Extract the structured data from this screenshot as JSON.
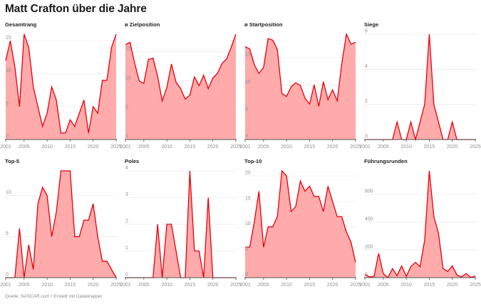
{
  "header": {
    "title": "Matt Crafton über die Jahre"
  },
  "footer": {
    "source": "Quelle: NASCAR.com • Erstellt mit Datawrapper"
  },
  "colors": {
    "line": "#e8000b",
    "fill": "#ffaaab",
    "grid": "#ececec",
    "axis": "#555555",
    "tick_text": "#8f8f8f"
  },
  "chart_data": [
    {
      "type": "area",
      "title": "Gesamtrang",
      "xlabel": "",
      "ylabel": "",
      "x": [
        2001,
        2002,
        2003,
        2004,
        2005,
        2006,
        2007,
        2008,
        2009,
        2010,
        2011,
        2012,
        2013,
        2014,
        2015,
        2016,
        2017,
        2018,
        2019,
        2020,
        2021,
        2022,
        2023,
        2024,
        2025
      ],
      "values": [
        12,
        15,
        11,
        5,
        16,
        14,
        8,
        5,
        2,
        4,
        8,
        6,
        1,
        1,
        3,
        2,
        4,
        6,
        1,
        5,
        4,
        9,
        9,
        14,
        16
      ],
      "ylim": [
        0,
        16
      ],
      "yticks": [
        0,
        5,
        10,
        15
      ],
      "xticks": [
        2001,
        2005,
        2010,
        2015,
        2020,
        2025
      ],
      "grid": true
    },
    {
      "type": "area",
      "title": "ø Zielposition",
      "xlabel": "",
      "ylabel": "",
      "x": [
        2001,
        2002,
        2003,
        2004,
        2005,
        2006,
        2007,
        2008,
        2009,
        2010,
        2011,
        2012,
        2013,
        2014,
        2015,
        2016,
        2017,
        2018,
        2019,
        2020,
        2021,
        2022,
        2023,
        2024,
        2025
      ],
      "values": [
        16.2,
        16.6,
        13.1,
        10.0,
        9.6,
        13.7,
        13.9,
        10.8,
        6.6,
        8.9,
        12.9,
        9.8,
        8.7,
        6.9,
        7.6,
        10.7,
        9.2,
        11.0,
        8.7,
        10.5,
        11.3,
        13.0,
        13.8,
        15.8,
        18.0
      ],
      "ylim": [
        0,
        18
      ],
      "yticks": [
        0,
        5,
        10,
        15
      ],
      "xticks": [
        2001,
        2005,
        2010,
        2015,
        2020,
        2025
      ],
      "grid": true
    },
    {
      "type": "area",
      "title": "ø Startposition",
      "xlabel": "",
      "ylabel": "",
      "x": [
        2001,
        2002,
        2003,
        2004,
        2005,
        2006,
        2007,
        2008,
        2009,
        2010,
        2011,
        2012,
        2013,
        2014,
        2015,
        2016,
        2017,
        2018,
        2019,
        2020,
        2021,
        2022,
        2023,
        2024,
        2025
      ],
      "values": [
        17.0,
        16.6,
        13.7,
        12.1,
        13.2,
        18.5,
        18.2,
        16.5,
        8.4,
        7.9,
        9.7,
        10.4,
        9.9,
        7.6,
        6.5,
        10.0,
        6.1,
        10.6,
        7.3,
        9.1,
        7.1,
        13.9,
        19.3,
        17.5,
        17.8
      ],
      "ylim": [
        0,
        19.3
      ],
      "yticks": [
        0,
        5,
        10,
        15
      ],
      "xticks": [
        2001,
        2005,
        2010,
        2015,
        2020,
        2025
      ],
      "grid": true
    },
    {
      "type": "area",
      "title": "Siege",
      "xlabel": "",
      "ylabel": "",
      "x": [
        2001,
        2002,
        2003,
        2004,
        2005,
        2006,
        2007,
        2008,
        2009,
        2010,
        2011,
        2012,
        2013,
        2014,
        2015,
        2016,
        2017,
        2018,
        2019,
        2020,
        2021,
        2022,
        2023,
        2024,
        2025
      ],
      "values": [
        0,
        0,
        0,
        0,
        0,
        0,
        0,
        1,
        0,
        0,
        1,
        0,
        1,
        2,
        6,
        2,
        1,
        0,
        0,
        1,
        0,
        0,
        0,
        0,
        0
      ],
      "ylim": [
        0,
        6
      ],
      "yticks": [
        0,
        2,
        4,
        6
      ],
      "xticks": [
        2001,
        2005,
        2010,
        2015,
        2020,
        2025
      ],
      "grid": true
    },
    {
      "type": "area",
      "title": "Top-5",
      "xlabel": "",
      "ylabel": "",
      "x": [
        2001,
        2002,
        2003,
        2004,
        2005,
        2006,
        2007,
        2008,
        2009,
        2010,
        2011,
        2012,
        2013,
        2014,
        2015,
        2016,
        2017,
        2018,
        2019,
        2020,
        2021,
        2022,
        2023,
        2024,
        2025
      ],
      "values": [
        0,
        0,
        0,
        6,
        0,
        4,
        1,
        9,
        11,
        10,
        5,
        8,
        13,
        13,
        13,
        5,
        5,
        7,
        7,
        9,
        5,
        2,
        2,
        1,
        0
      ],
      "ylim": [
        0,
        13
      ],
      "yticks": [
        0,
        5,
        10
      ],
      "xticks": [
        2001,
        2005,
        2010,
        2015,
        2020,
        2025
      ],
      "grid": true
    },
    {
      "type": "area",
      "title": "Poles",
      "xlabel": "",
      "ylabel": "",
      "x": [
        2001,
        2002,
        2003,
        2004,
        2005,
        2006,
        2007,
        2008,
        2009,
        2010,
        2011,
        2012,
        2013,
        2014,
        2015,
        2016,
        2017,
        2018,
        2019,
        2020,
        2021,
        2022,
        2023,
        2024,
        2025
      ],
      "values": [
        0,
        0,
        0,
        0,
        0,
        0,
        0,
        2,
        0,
        2,
        2,
        1,
        0,
        0,
        4,
        1,
        1,
        0,
        3,
        0,
        0,
        0,
        0,
        0,
        0
      ],
      "ylim": [
        0,
        4
      ],
      "yticks": [
        0,
        1,
        2,
        3,
        4
      ],
      "xticks": [
        2001,
        2005,
        2010,
        2015,
        2020,
        2025
      ],
      "grid": true
    },
    {
      "type": "area",
      "title": "Top-10",
      "xlabel": "",
      "ylabel": "",
      "x": [
        2001,
        2002,
        2003,
        2004,
        2005,
        2006,
        2007,
        2008,
        2009,
        2010,
        2011,
        2012,
        2013,
        2014,
        2015,
        2016,
        2017,
        2018,
        2019,
        2020,
        2021,
        2022,
        2023,
        2024,
        2025
      ],
      "values": [
        6,
        6,
        11,
        17,
        6,
        10,
        10,
        12,
        21,
        20,
        13,
        14,
        19,
        17,
        18,
        16,
        16,
        13,
        18,
        15,
        12,
        12,
        9,
        7,
        3
      ],
      "ylim": [
        0,
        21
      ],
      "yticks": [
        0,
        5,
        10,
        15,
        20
      ],
      "xticks": [
        2001,
        2005,
        2010,
        2015,
        2020,
        2025
      ],
      "grid": true
    },
    {
      "type": "area",
      "title": "Führungsrunden",
      "xlabel": "",
      "ylabel": "",
      "x": [
        2001,
        2002,
        2003,
        2004,
        2005,
        2006,
        2007,
        2008,
        2009,
        2010,
        2011,
        2012,
        2013,
        2014,
        2015,
        2016,
        2017,
        2018,
        2019,
        2020,
        2021,
        2022,
        2023,
        2024,
        2025
      ],
      "values": [
        25,
        5,
        10,
        175,
        30,
        0,
        65,
        15,
        85,
        10,
        80,
        110,
        80,
        270,
        770,
        440,
        320,
        65,
        45,
        85,
        20,
        5,
        30,
        2,
        12
      ],
      "ylim": [
        0,
        770
      ],
      "yticks": [
        0,
        200,
        400,
        600
      ],
      "xticks": [
        2001,
        2005,
        2010,
        2015,
        2020,
        2025
      ],
      "grid": true
    }
  ]
}
